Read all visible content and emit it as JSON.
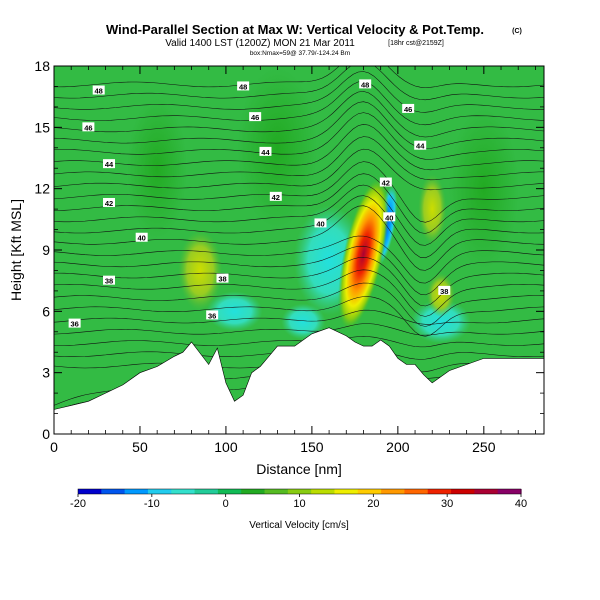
{
  "chart_data": {
    "type": "heatmap",
    "title": "Wind-Parallel Section at Max W: Vertical Velocity & Pot.Temp.",
    "title_suffix": "(C)",
    "subtitle": "Valid 1400 LST (1200Z) MON 21 Mar 2011",
    "subtitle_suffix": "[18hr cst@2159Z]",
    "location_line": "box:Nmax=59@ 37.79/-124.24 Bm",
    "xlabel": "Distance [nm]",
    "ylabel": "Height [Kft MSL]",
    "xlim": [
      0,
      285
    ],
    "ylim": [
      0,
      18
    ],
    "x_ticks": [
      0,
      50,
      100,
      150,
      200,
      250
    ],
    "y_ticks": [
      0,
      3,
      6,
      9,
      12,
      15,
      18
    ],
    "colorbar": {
      "label": "Vertical Velocity [cm/s]",
      "range": [
        -20,
        40
      ],
      "ticks": [
        -20,
        -10,
        0,
        10,
        20,
        30,
        40
      ],
      "colors": [
        "#0000cc",
        "#0055ee",
        "#0099ff",
        "#22ccee",
        "#33e0cc",
        "#22cc99",
        "#11bb55",
        "#22aa22",
        "#55bb22",
        "#88cc11",
        "#bbdd00",
        "#eeee00",
        "#ffcc00",
        "#ff9900",
        "#ff6600",
        "#ee2200",
        "#cc0000",
        "#aa0033",
        "#880066"
      ]
    },
    "isentrope_labels": [
      {
        "value": "36",
        "x": 12,
        "y": 5.4
      },
      {
        "value": "36",
        "x": 92,
        "y": 5.8
      },
      {
        "value": "38",
        "x": 32,
        "y": 7.5
      },
      {
        "value": "38",
        "x": 98,
        "y": 7.6
      },
      {
        "value": "38",
        "x": 227,
        "y": 7.0
      },
      {
        "value": "40",
        "x": 51,
        "y": 9.6
      },
      {
        "value": "40",
        "x": 155,
        "y": 10.3
      },
      {
        "value": "40",
        "x": 195,
        "y": 10.6
      },
      {
        "value": "42",
        "x": 32,
        "y": 11.3
      },
      {
        "value": "42",
        "x": 129,
        "y": 11.6
      },
      {
        "value": "42",
        "x": 193,
        "y": 12.3
      },
      {
        "value": "44",
        "x": 32,
        "y": 13.2
      },
      {
        "value": "44",
        "x": 123,
        "y": 13.8
      },
      {
        "value": "44",
        "x": 213,
        "y": 14.1
      },
      {
        "value": "46",
        "x": 20,
        "y": 15.0
      },
      {
        "value": "46",
        "x": 117,
        "y": 15.5
      },
      {
        "value": "46",
        "x": 206,
        "y": 15.9
      },
      {
        "value": "48",
        "x": 26,
        "y": 16.8
      },
      {
        "value": "48",
        "x": 110,
        "y": 17.0
      },
      {
        "value": "48",
        "x": 181,
        "y": 17.1
      }
    ],
    "terrain": [
      [
        0,
        1.2
      ],
      [
        10,
        1.4
      ],
      [
        20,
        1.6
      ],
      [
        30,
        2.0
      ],
      [
        40,
        2.4
      ],
      [
        50,
        3.0
      ],
      [
        60,
        3.3
      ],
      [
        70,
        3.8
      ],
      [
        75,
        4.0
      ],
      [
        80,
        4.5
      ],
      [
        90,
        3.4
      ],
      [
        95,
        4.2
      ],
      [
        100,
        2.5
      ],
      [
        105,
        1.6
      ],
      [
        110,
        1.9
      ],
      [
        115,
        3.0
      ],
      [
        120,
        3.3
      ],
      [
        125,
        3.8
      ],
      [
        130,
        4.3
      ],
      [
        140,
        4.3
      ],
      [
        150,
        4.9
      ],
      [
        160,
        5.2
      ],
      [
        170,
        4.8
      ],
      [
        175,
        4.5
      ],
      [
        180,
        4.3
      ],
      [
        185,
        4.3
      ],
      [
        190,
        4.6
      ],
      [
        195,
        4.3
      ],
      [
        200,
        3.7
      ],
      [
        205,
        3.4
      ],
      [
        210,
        3.4
      ],
      [
        215,
        2.9
      ],
      [
        220,
        2.5
      ],
      [
        230,
        3.1
      ],
      [
        240,
        3.4
      ],
      [
        250,
        3.7
      ],
      [
        260,
        3.7
      ],
      [
        270,
        3.7
      ],
      [
        285,
        3.7
      ]
    ]
  }
}
